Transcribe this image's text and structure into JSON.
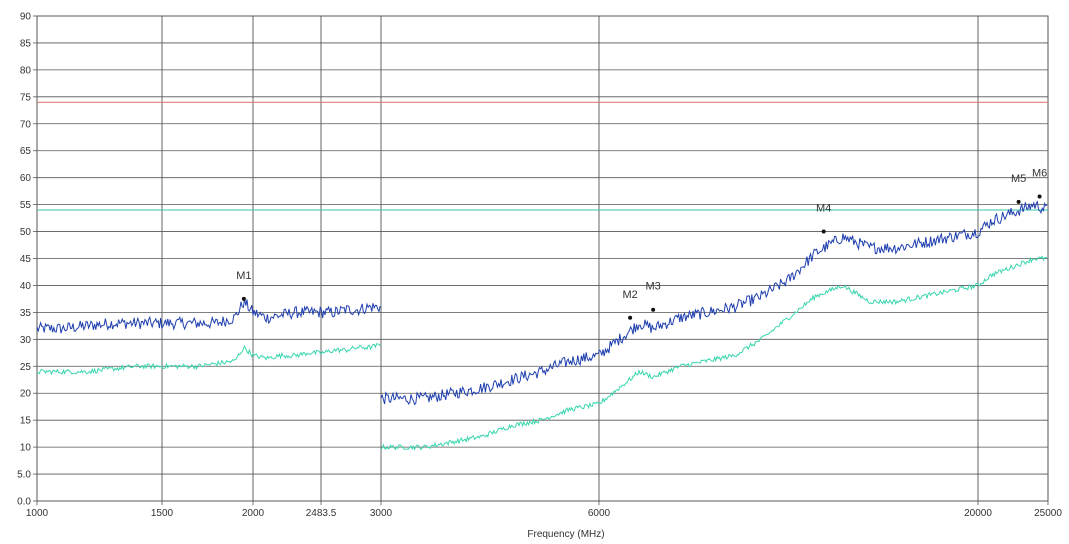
{
  "header_note": "",
  "chart_data": {
    "type": "line",
    "xlabel": "Frequency (MHz)",
    "ylabel": "",
    "ylim": [
      0,
      90
    ],
    "y_ticks": [
      "0.0",
      "5.0",
      "10",
      "15",
      "20",
      "25",
      "30",
      "35",
      "40",
      "45",
      "50",
      "55",
      "60",
      "65",
      "70",
      "75",
      "80",
      "85",
      "90"
    ],
    "x_ticks": [
      "1000",
      "1500",
      "2000",
      "2483.5",
      "3000",
      "6000",
      "20000",
      "25000"
    ],
    "x_tick_values": [
      1000,
      1500,
      2000,
      2483.5,
      3000,
      6000,
      20000,
      25000
    ],
    "x_axis_note": "piecewise scale: 1000-3000 MHz linear, 3000-25000 MHz compressed",
    "grid": true,
    "limit_lines": [
      {
        "name": "",
        "y": 74,
        "color": "#e26a6a"
      },
      {
        "name": "",
        "y": 54,
        "color": "#35c7a8"
      }
    ],
    "series": [
      {
        "name": "",
        "color": "#1f3fae",
        "x": [
          1000,
          1100,
          1200,
          1300,
          1400,
          1500,
          1600,
          1700,
          1800,
          1900,
          1950,
          2000,
          2100,
          2200,
          2300,
          2400,
          2500,
          2600,
          2700,
          2800,
          2900,
          3000
        ],
        "y": [
          32,
          32,
          32.5,
          33,
          33,
          33,
          33,
          33,
          33,
          34,
          37,
          35,
          34,
          34.5,
          35,
          35,
          35,
          35,
          35.5,
          35.5,
          36,
          36
        ]
      },
      {
        "name": "",
        "color": "#1f3fae",
        "x": [
          3000,
          3300,
          3600,
          4000,
          4400,
          4800,
          5200,
          5600,
          6000,
          6500,
          7000,
          7500,
          8000,
          8500,
          9000,
          10000,
          11000,
          12000,
          13000,
          14000,
          15000,
          16000,
          17000,
          18000,
          19000,
          20000,
          21000,
          22000,
          23000,
          24000,
          25000
        ],
        "y": [
          19,
          19,
          19,
          20,
          21,
          22.5,
          24,
          26,
          27,
          29,
          31,
          33,
          32,
          33,
          34,
          35,
          36,
          38,
          41,
          46,
          49,
          47,
          47,
          48,
          49,
          50,
          52,
          53,
          54,
          55,
          54
        ]
      },
      {
        "name": "",
        "color": "#3ad6b0",
        "x": [
          1000,
          1100,
          1200,
          1300,
          1400,
          1500,
          1600,
          1700,
          1800,
          1900,
          1950,
          2000,
          2100,
          2200,
          2300,
          2400,
          2500,
          2600,
          2700,
          2800,
          2900,
          3000
        ],
        "y": [
          24,
          24,
          24,
          24.5,
          25,
          25,
          25,
          25,
          25.5,
          26,
          28.5,
          27,
          26.5,
          27,
          27,
          27.5,
          27.5,
          28,
          28,
          28.5,
          28.5,
          29
        ]
      },
      {
        "name": "",
        "color": "#3ad6b0",
        "x": [
          3000,
          3300,
          3600,
          4000,
          4400,
          4800,
          5200,
          5600,
          6000,
          6500,
          7000,
          7500,
          8000,
          8500,
          9000,
          10000,
          11000,
          12000,
          13000,
          14000,
          15000,
          16000,
          17000,
          18000,
          19000,
          20000,
          21000,
          22000,
          23000,
          24000,
          25000
        ],
        "y": [
          10,
          10,
          10,
          11,
          12,
          14,
          15,
          17,
          18,
          20,
          22,
          24,
          23,
          24,
          25,
          26,
          27,
          30,
          34,
          38,
          40,
          37,
          37,
          38,
          39,
          40,
          42,
          43,
          44,
          45,
          45
        ]
      }
    ],
    "markers": [
      {
        "label": "M1",
        "x": 1950,
        "y": 37.5
      },
      {
        "label": "M2",
        "x": 7150,
        "y": 34
      },
      {
        "label": "M3",
        "x": 8000,
        "y": 35.5
      },
      {
        "label": "M4",
        "x": 14300,
        "y": 50
      },
      {
        "label": "M5",
        "x": 22900,
        "y": 55.5
      },
      {
        "label": "M6",
        "x": 24400,
        "y": 56.5
      }
    ]
  }
}
